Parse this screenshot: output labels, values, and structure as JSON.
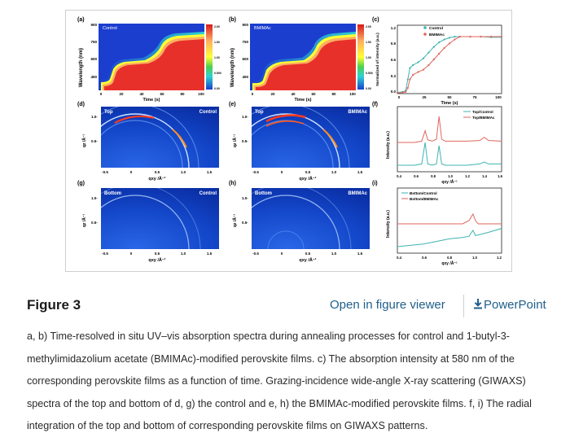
{
  "figure": {
    "panels": {
      "a": {
        "letter": "(a)",
        "tag": "Control",
        "ylabel": "Wavelength (nm)",
        "xlabel": "Time (s)",
        "yticks": [
          "900",
          "750",
          "600",
          "450"
        ],
        "xticks": [
          "0",
          "20",
          "40",
          "60",
          "80",
          "100"
        ],
        "cbar_ticks": [
          "2.00",
          "1.50",
          "1.00",
          "0.500",
          "0.00"
        ]
      },
      "b": {
        "letter": "(b)",
        "tag": "BMIMAc",
        "ylabel": "Wavelength (nm)",
        "xlabel": "Time (s)",
        "yticks": [
          "900",
          "750",
          "600",
          "450"
        ],
        "xticks": [
          "0",
          "20",
          "40",
          "60",
          "80",
          "100"
        ],
        "cbar_ticks": [
          "2.00",
          "1.50",
          "1.00",
          "0.500",
          "0.00"
        ]
      },
      "c": {
        "letter": "(c)",
        "ylabel": "Normalized of intensity (a.u.)",
        "xlabel": "Time (s)",
        "yticks": [
          "1.2",
          "0.9",
          "0.6",
          "0.3",
          "0.0"
        ],
        "xticks": [
          "0",
          "25",
          "50",
          "75",
          "100"
        ],
        "legend": [
          "Control",
          "BMIMAc"
        ]
      },
      "d": {
        "letter": "(d)",
        "tag_left": "Top",
        "tag_right": "Control"
      },
      "e": {
        "letter": "(e)",
        "tag_left": "Top",
        "tag_right": "BMIMAc"
      },
      "f": {
        "letter": "(f)",
        "ylabel": "Intensity (a.u.)",
        "xticks": [
          "0.4",
          "0.6",
          "0.8",
          "1.0",
          "1.2",
          "1.4",
          "1.6"
        ],
        "legend": [
          "Top/Control",
          "Top/BMIMAc"
        ]
      },
      "g": {
        "letter": "(g)",
        "tag_left": "Bottom",
        "tag_right": "Control"
      },
      "h": {
        "letter": "(h)",
        "tag_left": "Bottom",
        "tag_right": "BMIMAc"
      },
      "i": {
        "letter": "(i)",
        "ylabel": "Intensity (a.u.)",
        "xticks": [
          "0.4",
          "0.6",
          "0.8",
          "1.0",
          "1.2"
        ],
        "legend": [
          "Bottom/Control",
          "Bottom/BMIMAc"
        ]
      },
      "giwaxs": {
        "yticks": [
          "1.0-",
          "0.5-"
        ],
        "xticks": [
          "-0.5",
          "0",
          "0.5",
          "1.0",
          "1.5"
        ],
        "ylabel": "qz /Å⁻¹",
        "xlabel": "qxy /Å⁻¹"
      }
    },
    "colors": {
      "control": "#3fb3b0",
      "bmimac": "#e0655d",
      "link": "#1f5f8b"
    }
  },
  "chart_data": [
    {
      "type": "line",
      "title": "(c)",
      "xlabel": "Time (s)",
      "ylabel": "Normalized of intensity (a.u.)",
      "xlim": [
        0,
        100
      ],
      "ylim": [
        0,
        1.2
      ],
      "series": [
        {
          "name": "Control",
          "x": [
            0,
            5,
            8,
            10,
            12,
            15,
            20,
            25,
            30,
            35,
            40,
            45,
            50,
            55,
            60,
            70,
            80,
            90,
            100
          ],
          "values": [
            0.02,
            0.03,
            0.05,
            0.25,
            0.45,
            0.5,
            0.55,
            0.62,
            0.72,
            0.82,
            0.9,
            0.95,
            0.98,
            1.0,
            1.0,
            1.0,
            1.0,
            0.99,
            0.99
          ]
        },
        {
          "name": "BMIMAc",
          "x": [
            0,
            5,
            8,
            10,
            12,
            15,
            20,
            25,
            30,
            35,
            40,
            45,
            50,
            55,
            60,
            70,
            80,
            90,
            100
          ],
          "values": [
            0.01,
            0.02,
            0.03,
            0.1,
            0.25,
            0.33,
            0.38,
            0.42,
            0.5,
            0.6,
            0.7,
            0.8,
            0.88,
            0.95,
            1.0,
            1.0,
            1.0,
            1.0,
            1.0
          ]
        }
      ]
    },
    {
      "type": "line",
      "title": "(f)",
      "xlabel": "qxy /Å⁻¹",
      "ylabel": "Intensity (a.u.)",
      "xlim": [
        0.4,
        1.6
      ],
      "series": [
        {
          "name": "Top/Control",
          "x": [
            0.4,
            0.6,
            0.68,
            0.72,
            0.75,
            0.8,
            0.85,
            0.88,
            0.91,
            0.95,
            1.0,
            1.1,
            1.2,
            1.35,
            1.4,
            1.45,
            1.6
          ],
          "values": [
            0.0,
            0.0,
            0.02,
            0.35,
            0.02,
            0.0,
            0.02,
            0.3,
            0.02,
            0.0,
            0.0,
            0.0,
            0.0,
            0.02,
            0.05,
            0.02,
            0.02
          ]
        },
        {
          "name": "Top/BMIMAc",
          "x": [
            0.4,
            0.6,
            0.68,
            0.72,
            0.75,
            0.8,
            0.85,
            0.88,
            0.91,
            0.95,
            1.0,
            1.1,
            1.2,
            1.35,
            1.4,
            1.45,
            1.6
          ],
          "values": [
            0.0,
            0.0,
            0.02,
            0.18,
            0.04,
            0.02,
            0.05,
            0.4,
            0.05,
            0.02,
            0.02,
            0.02,
            0.02,
            0.03,
            0.08,
            0.03,
            0.02
          ]
        }
      ]
    },
    {
      "type": "line",
      "title": "(i)",
      "xlabel": "qxy /Å⁻¹",
      "ylabel": "Intensity (a.u.)",
      "xlim": [
        0.4,
        1.2
      ],
      "series": [
        {
          "name": "Bottom/Control",
          "x": [
            0.4,
            0.5,
            0.6,
            0.7,
            0.75,
            0.8,
            0.9,
            0.95,
            0.98,
            1.0,
            1.02,
            1.1,
            1.2
          ],
          "values": [
            0.0,
            0.02,
            0.04,
            0.08,
            0.1,
            0.12,
            0.14,
            0.16,
            0.25,
            0.17,
            0.18,
            0.22,
            0.28
          ]
        },
        {
          "name": "Bottom/BMIMAc",
          "x": [
            0.4,
            0.5,
            0.6,
            0.7,
            0.75,
            0.8,
            0.9,
            0.95,
            0.98,
            1.0,
            1.02,
            1.1,
            1.2
          ],
          "values": [
            0.0,
            0.0,
            0.0,
            0.0,
            0.0,
            0.0,
            0.0,
            0.05,
            0.15,
            0.05,
            0.0,
            0.0,
            0.0
          ]
        }
      ]
    }
  ],
  "header": {
    "title": "Figure 3",
    "viewer_link": "Open in figure viewer",
    "ppt_link": "PowerPoint"
  },
  "caption": "a, b) Time-resolved in situ UV–vis absorption spectra during annealing processes for control and 1-butyl-3-methylimidazolium acetate (BMIMAc)-modified perovskite films. c) The absorption intensity at 580 nm of the corresponding perovskite films as a function of time. Grazing-incidence wide-angle X-ray scattering (GIWAXS) spectra of the top and bottom of d, g) the control and e, h) the BMIMAc-modified perovskite films. f, i) The radial integration of the top and bottom of corresponding perovskite films on GIWAXS patterns."
}
